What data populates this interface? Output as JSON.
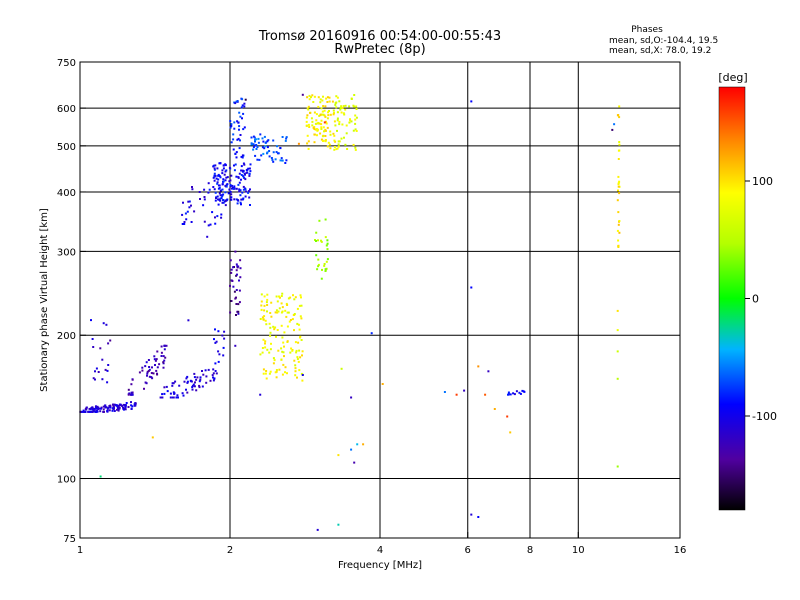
{
  "chart_data": {
    "type": "scatter",
    "title": "Tromsø 20160916 00:54:00-00:55:43",
    "subtitle": "RwPretec (8p)",
    "xlabel": "Frequency [MHz]",
    "ylabel": "Stationary phase Virtual Height [km]",
    "x_scale": "log",
    "y_scale": "log",
    "xlim": [
      1,
      16
    ],
    "ylim": [
      75,
      750
    ],
    "x_ticks": [
      1,
      2,
      4,
      6,
      8,
      10,
      16
    ],
    "y_ticks": [
      75,
      100,
      200,
      300,
      400,
      500,
      600,
      750
    ],
    "grid": true,
    "legend": {
      "title": "Phases",
      "lines": [
        "mean, sd,O:-104.4, 19.5",
        "mean, sd,X:  78.0, 19.2"
      ]
    },
    "colorbar": {
      "label": "[deg]",
      "range": [
        -180,
        180
      ],
      "ticks": [
        100,
        0,
        -100
      ]
    },
    "clusters": [
      {
        "x": [
          1.0,
          1.3
        ],
        "y": [
          138,
          148
        ],
        "phase": -110,
        "n": 130,
        "shape": "band",
        "slope": 0.5
      },
      {
        "x": [
          1.05,
          1.15
        ],
        "y": [
          150,
          225
        ],
        "phase": -115,
        "n": 18,
        "shape": "box"
      },
      {
        "x": [
          1.25,
          1.5
        ],
        "y": [
          150,
          190
        ],
        "phase": -125,
        "n": 60,
        "shape": "band",
        "slope": 0.9
      },
      {
        "x": [
          1.45,
          1.9
        ],
        "y": [
          148,
          178
        ],
        "phase": -108,
        "n": 70,
        "shape": "band",
        "slope": 0.7
      },
      {
        "x": [
          1.85,
          1.95
        ],
        "y": [
          180,
          210
        ],
        "phase": -105,
        "n": 12,
        "shape": "box"
      },
      {
        "x": [
          1.6,
          1.95
        ],
        "y": [
          340,
          420
        ],
        "phase": -100,
        "n": 40,
        "shape": "box"
      },
      {
        "x": [
          1.85,
          2.2
        ],
        "y": [
          375,
          460
        ],
        "phase": -95,
        "n": 160,
        "shape": "box"
      },
      {
        "x": [
          2.0,
          2.15
        ],
        "y": [
          470,
          640
        ],
        "phase": -85,
        "n": 45,
        "shape": "box"
      },
      {
        "x": [
          2.2,
          2.6
        ],
        "y": [
          460,
          530
        ],
        "phase": -70,
        "n": 60,
        "shape": "box"
      },
      {
        "x": [
          2.0,
          2.1
        ],
        "y": [
          220,
          300
        ],
        "phase": -135,
        "n": 35,
        "shape": "box"
      },
      {
        "x": [
          2.3,
          2.8
        ],
        "y": [
          160,
          245
        ],
        "phase": 85,
        "n": 150,
        "shape": "box"
      },
      {
        "x": [
          2.85,
          3.25
        ],
        "y": [
          490,
          640
        ],
        "phase": 90,
        "n": 110,
        "shape": "box"
      },
      {
        "x": [
          3.25,
          3.6
        ],
        "y": [
          490,
          640
        ],
        "phase": 75,
        "n": 60,
        "shape": "box"
      },
      {
        "x": [
          2.95,
          3.15
        ],
        "y": [
          260,
          360
        ],
        "phase": 45,
        "n": 28,
        "shape": "box"
      },
      {
        "x": [
          12.0,
          12.1
        ],
        "y": [
          300,
          630
        ],
        "phase": 95,
        "n": 28,
        "shape": "box"
      },
      {
        "x": [
          7.0,
          7.8
        ],
        "y": [
          150,
          153
        ],
        "phase": -90,
        "n": 12,
        "shape": "box"
      }
    ],
    "points": [
      {
        "x": 1.1,
        "y": 101,
        "phase": -20
      },
      {
        "x": 1.4,
        "y": 122,
        "phase": 110
      },
      {
        "x": 1.8,
        "y": 322,
        "phase": -110
      },
      {
        "x": 2.05,
        "y": 190,
        "phase": -120
      },
      {
        "x": 3.3,
        "y": 112,
        "phase": 100
      },
      {
        "x": 3.5,
        "y": 115,
        "phase": -60
      },
      {
        "x": 3.55,
        "y": 108,
        "phase": -130
      },
      {
        "x": 3.6,
        "y": 118,
        "phase": -40
      },
      {
        "x": 3.7,
        "y": 118,
        "phase": 120
      },
      {
        "x": 3.85,
        "y": 202,
        "phase": -80
      },
      {
        "x": 3.5,
        "y": 148,
        "phase": -120
      },
      {
        "x": 4.05,
        "y": 158,
        "phase": 120
      },
      {
        "x": 3.0,
        "y": 78,
        "phase": -110
      },
      {
        "x": 3.3,
        "y": 80,
        "phase": -30
      },
      {
        "x": 2.8,
        "y": 165,
        "phase": -100
      },
      {
        "x": 3.35,
        "y": 170,
        "phase": 60
      },
      {
        "x": 5.4,
        "y": 152,
        "phase": -60
      },
      {
        "x": 5.7,
        "y": 150,
        "phase": 160
      },
      {
        "x": 5.9,
        "y": 153,
        "phase": -120
      },
      {
        "x": 6.1,
        "y": 252,
        "phase": -90
      },
      {
        "x": 6.1,
        "y": 620,
        "phase": -90
      },
      {
        "x": 6.1,
        "y": 84,
        "phase": -110
      },
      {
        "x": 6.3,
        "y": 83,
        "phase": -90
      },
      {
        "x": 6.3,
        "y": 172,
        "phase": 130
      },
      {
        "x": 6.5,
        "y": 150,
        "phase": 150
      },
      {
        "x": 6.6,
        "y": 168,
        "phase": -120
      },
      {
        "x": 6.8,
        "y": 140,
        "phase": 120
      },
      {
        "x": 7.2,
        "y": 135,
        "phase": 160
      },
      {
        "x": 7.3,
        "y": 125,
        "phase": 110
      },
      {
        "x": 11.7,
        "y": 540,
        "phase": -150
      },
      {
        "x": 11.8,
        "y": 555,
        "phase": -60
      },
      {
        "x": 12.0,
        "y": 225,
        "phase": 100
      },
      {
        "x": 12.0,
        "y": 205,
        "phase": 80
      },
      {
        "x": 12.0,
        "y": 185,
        "phase": 60
      },
      {
        "x": 12.0,
        "y": 162,
        "phase": 50
      },
      {
        "x": 12.0,
        "y": 106,
        "phase": 40
      },
      {
        "x": 2.15,
        "y": 625,
        "phase": -160
      },
      {
        "x": 2.8,
        "y": 640,
        "phase": -140
      },
      {
        "x": 3.1,
        "y": 560,
        "phase": 160
      },
      {
        "x": 2.75,
        "y": 505,
        "phase": 130
      },
      {
        "x": 1.15,
        "y": 195,
        "phase": -140
      },
      {
        "x": 1.65,
        "y": 215,
        "phase": -110
      },
      {
        "x": 2.3,
        "y": 150,
        "phase": -110
      }
    ]
  }
}
